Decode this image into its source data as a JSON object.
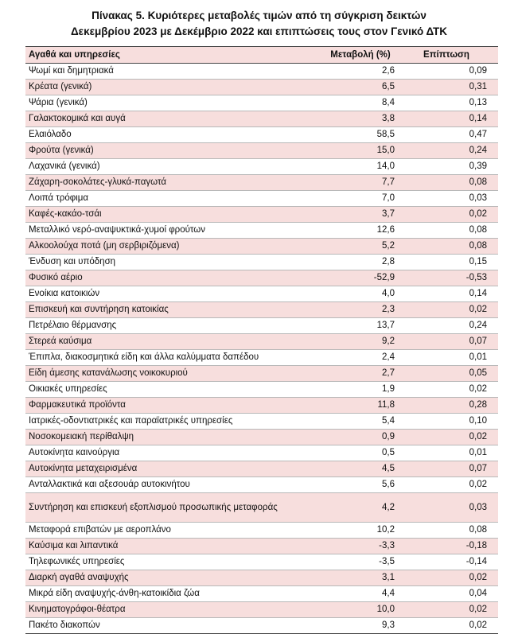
{
  "title": {
    "line1": "Πίνακας  5. Κυριότερες μεταβολές τιμών από τη σύγκριση δεικτών",
    "line2": "Δεκεμβρίου 2023 με Δεκέμβριο 2022 και επιπτώσεις τους στον Γενικό ΔΤΚ"
  },
  "table": {
    "headers": [
      "Αγαθά και υπηρεσίες",
      "Μεταβολή (%)",
      "Επίπτωση"
    ],
    "rows": [
      [
        "Ψωμί και δημητριακά",
        "2,6",
        "0,09"
      ],
      [
        "Κρέατα (γενικά)",
        "6,5",
        "0,31"
      ],
      [
        "Ψάρια (γενικά)",
        "8,4",
        "0,13"
      ],
      [
        "Γαλακτοκομικά και αυγά",
        "3,8",
        "0,14"
      ],
      [
        "Ελαιόλαδο",
        "58,5",
        "0,47"
      ],
      [
        "Φρούτα (γενικά)",
        "15,0",
        "0,24"
      ],
      [
        "Λαχανικά (γενικά)",
        "14,0",
        "0,39"
      ],
      [
        "Ζάχαρη-σοκολάτες-γλυκά-παγωτά",
        "7,7",
        "0,08"
      ],
      [
        "Λοιπά τρόφιμα",
        "7,0",
        "0,03"
      ],
      [
        "Καφές-κακάο-τσάι",
        "3,7",
        "0,02"
      ],
      [
        "Μεταλλικό νερό-αναψυκτικά-χυμοί φρούτων",
        "12,6",
        "0,08"
      ],
      [
        "Αλκοολούχα ποτά (μη σερβιριζόμενα)",
        "5,2",
        "0,08"
      ],
      [
        "Ένδυση και υπόδηση",
        "2,8",
        "0,15"
      ],
      [
        "Φυσικό αέριο",
        "-52,9",
        "-0,53"
      ],
      [
        "Ενοίκια κατοικιών",
        "4,0",
        "0,14"
      ],
      [
        "Επισκευή και συντήρηση κατοικίας",
        "2,3",
        "0,02"
      ],
      [
        "Πετρέλαιο θέρμανσης",
        "13,7",
        "0,24"
      ],
      [
        "Στερεά καύσιμα",
        "9,2",
        "0,07"
      ],
      [
        "Έπιπλα, διακοσμητικά είδη και άλλα καλύμματα δαπέδου",
        "2,4",
        "0,01"
      ],
      [
        "Είδη άμεσης κατανάλωσης νοικοκυριού",
        "2,7",
        "0,05"
      ],
      [
        "Οικιακές υπηρεσίες",
        "1,9",
        "0,02"
      ],
      [
        "Φαρμακευτικά προϊόντα",
        "11,8",
        "0,28"
      ],
      [
        "Ιατρικές-οδοντιατρικές και παραϊατρικές υπηρεσίες",
        "5,4",
        "0,10"
      ],
      [
        "Νοσοκομειακή περίθαλψη",
        "0,9",
        "0,02"
      ],
      [
        "Αυτοκίνητα καινούργια",
        "0,5",
        "0,01"
      ],
      [
        "Αυτοκίνητα μεταχειρισμένα",
        "4,5",
        "0,07"
      ],
      [
        "Ανταλλακτικά και αξεσουάρ αυτοκινήτου",
        "5,6",
        "0,02"
      ],
      [
        "Συντήρηση και επισκευή εξοπλισμού προσωπικής μεταφοράς",
        "4,2",
        "0,03"
      ],
      [
        "Μεταφορά επιβατών με αεροπλάνο",
        "10,2",
        "0,08"
      ],
      [
        "Καύσιμα και λιπαντικά",
        "-3,3",
        "-0,18"
      ],
      [
        "Τηλεφωνικές υπηρεσίες",
        "-3,5",
        "-0,14"
      ],
      [
        "Διαρκή αγαθά αναψυχής",
        "3,1",
        "0,02"
      ],
      [
        "Μικρά είδη αναψυχής-άνθη-κατοικίδια ζώα",
        "4,4",
        "0,04"
      ],
      [
        "Κινηματογράφοι-θέατρα",
        "10,0",
        "0,02"
      ],
      [
        "Πακέτο διακοπών",
        "9,3",
        "0,02"
      ]
    ]
  },
  "colors": {
    "header_row": "#f7dedd",
    "alt_row": "#f7dedd"
  }
}
